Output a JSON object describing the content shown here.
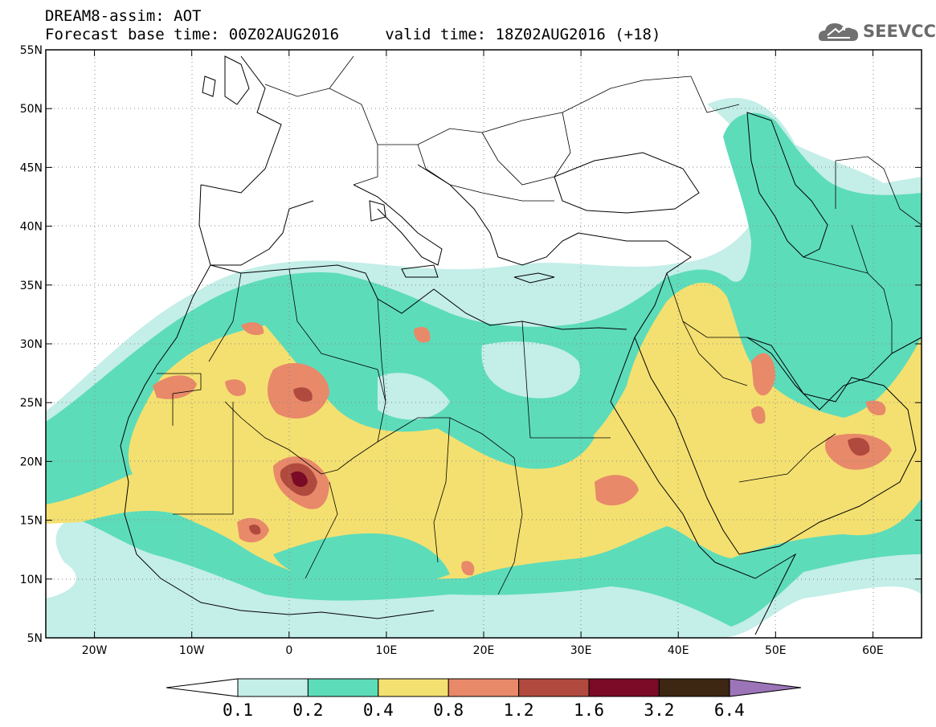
{
  "title_line1": "DREAM8-assim: AOT",
  "title_line2": "Forecast base time: 00Z02AUG2016     valid time: 18Z02AUG2016 (+18)",
  "logo": {
    "text": "SEEVCCC",
    "icon": "cloud-logo-icon"
  },
  "map": {
    "lon_range": [
      -25,
      65
    ],
    "lat_range": [
      5,
      55
    ],
    "lat_ticks": [
      "55N",
      "50N",
      "45N",
      "40N",
      "35N",
      "30N",
      "25N",
      "20N",
      "15N",
      "10N",
      "5N"
    ],
    "lon_ticks": [
      "20W",
      "10W",
      "0",
      "10E",
      "20E",
      "30E",
      "40E",
      "50E",
      "60E"
    ]
  },
  "colorbar": {
    "labels": [
      "0.1",
      "0.2",
      "0.4",
      "0.8",
      "1.2",
      "1.6",
      "3.2",
      "6.4"
    ],
    "colors": {
      "c0": "#ffffff",
      "c1": "#c4eee8",
      "c2": "#5ddcba",
      "c3": "#f4e070",
      "c4": "#e8896a",
      "c5": "#b04a3e",
      "c6": "#7a0a26",
      "c7": "#3d2612",
      "c8": "#9c75b8"
    }
  }
}
